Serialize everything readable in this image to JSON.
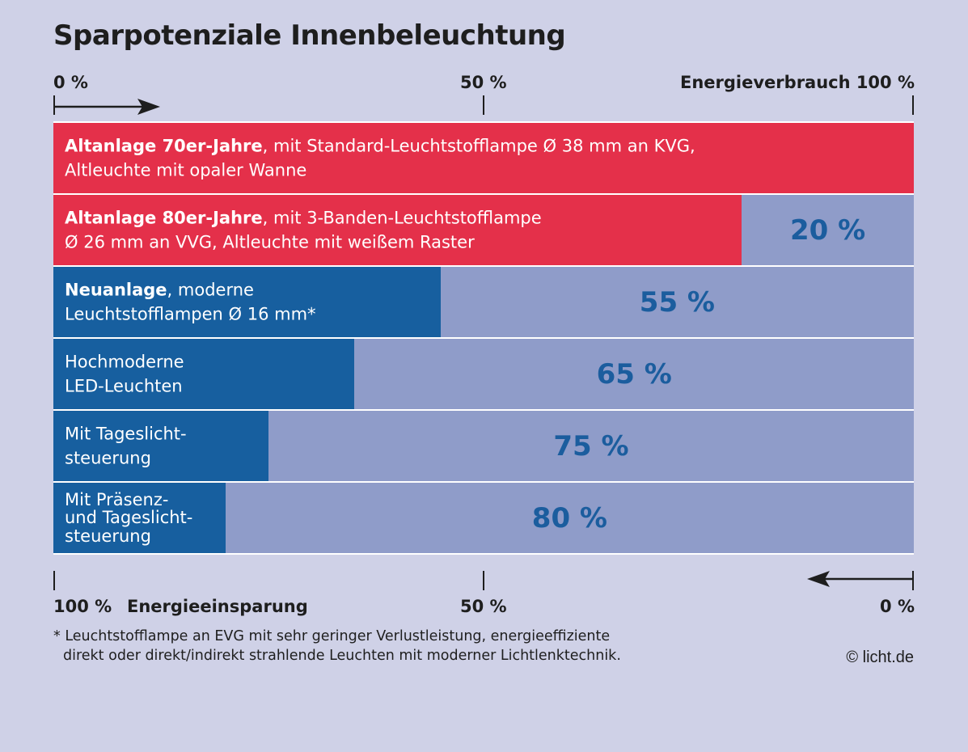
{
  "colors": {
    "background": "#cfd1e7",
    "old_installation": "#e4304a",
    "new_installation": "#175f9f",
    "savings": "#8f9cc9",
    "savings_text": "#1b5d9e"
  },
  "chart_data": {
    "type": "bar",
    "orientation": "horizontal-stacked",
    "title": "Sparpotenziale Innenbeleuchtung",
    "top_axis": {
      "name": "Energieverbrauch",
      "tick_labels": [
        "0 %",
        "50 %",
        "100 %"
      ],
      "range": [
        0,
        100
      ],
      "direction": "left-to-right"
    },
    "bottom_axis": {
      "name": "Energieeinsparung",
      "tick_labels": [
        "100 %",
        "50 %",
        "0 %"
      ],
      "range": [
        100,
        0
      ],
      "direction": "right-to-left"
    },
    "categories": [
      "Altanlage 70er-Jahre",
      "Altanlage 80er-Jahre",
      "Neuanlage",
      "Hochmoderne LED-Leuchten",
      "Mit Tageslichtsteuerung",
      "Mit Präsenz- und Tageslichtsteuerung"
    ],
    "series": [
      {
        "name": "Energieverbrauch",
        "values": [
          100,
          80,
          45,
          35,
          25,
          20
        ]
      },
      {
        "name": "Energieeinsparung",
        "values": [
          0,
          20,
          55,
          65,
          75,
          80
        ]
      }
    ],
    "rows": [
      {
        "color": "old",
        "consumption": 100,
        "savings": 0,
        "savings_label": "",
        "lines": [
          {
            "bold": "Altanlage 70er-Jahre",
            "normal": ", mit Standard-Leuchtstofflampe Ø 38 mm an KVG,"
          },
          {
            "bold": "",
            "normal": "Altleuchte mit opaler Wanne"
          }
        ]
      },
      {
        "color": "old",
        "consumption": 80,
        "savings": 20,
        "savings_label": "20 %",
        "lines": [
          {
            "bold": "Altanlage 80er-Jahre",
            "normal": ", mit 3-Banden-Leuchtstofflampe"
          },
          {
            "bold": "",
            "normal": "Ø 26 mm an VVG, Altleuchte mit weißem Raster"
          }
        ]
      },
      {
        "color": "new",
        "consumption": 45,
        "savings": 55,
        "savings_label": "55 %",
        "lines": [
          {
            "bold": "Neuanlage",
            "normal": ", moderne"
          },
          {
            "bold": "",
            "normal": "Leuchtstofflampen Ø 16 mm*"
          }
        ]
      },
      {
        "color": "new",
        "consumption": 35,
        "savings": 65,
        "savings_label": "65 %",
        "lines": [
          {
            "bold": "",
            "normal": "Hochmoderne"
          },
          {
            "bold": "",
            "normal": "LED-Leuchten"
          }
        ]
      },
      {
        "color": "new",
        "consumption": 25,
        "savings": 75,
        "savings_label": "75 %",
        "lines": [
          {
            "bold": "",
            "normal": "Mit Tageslicht-"
          },
          {
            "bold": "",
            "normal": "steuerung"
          }
        ]
      },
      {
        "color": "new",
        "consumption": 20,
        "savings": 80,
        "savings_label": "80 %",
        "lines": [
          {
            "bold": "",
            "normal": "Mit Präsenz-"
          },
          {
            "bold": "",
            "normal": "und Tageslicht-"
          },
          {
            "bold": "",
            "normal": "steuerung"
          }
        ]
      }
    ]
  },
  "footnote": {
    "line1": "* Leuchtstofflampe an EVG mit sehr geringer Verlustleistung, energieeffiziente",
    "line2": "direkt oder direkt/indirekt strahlende Leuchten mit moderner Lichtlenktechnik."
  },
  "copyright": "© licht.de"
}
